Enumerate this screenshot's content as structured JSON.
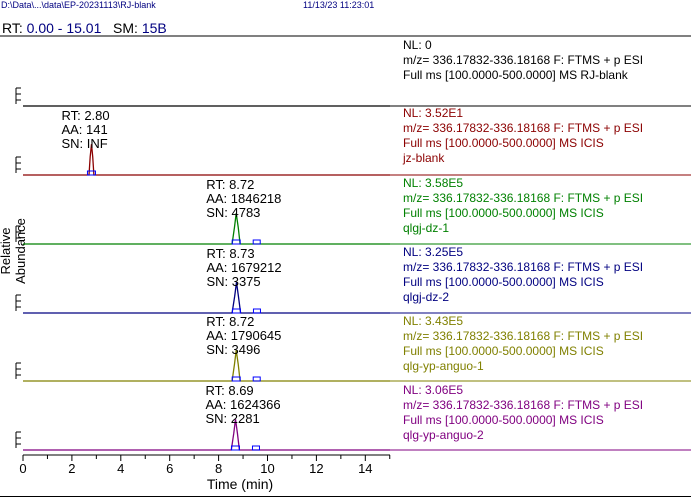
{
  "header": {
    "file_path": "D:\\Data\\...\\data\\EP-20231113\\RJ-blank",
    "timestamp": "11/13/23 11:23:01"
  },
  "rt_range": {
    "label": "RT:",
    "value": "0.00 - 15.01",
    "sm_label": "SM:",
    "sm_value": "15B"
  },
  "axis": {
    "ylabel": "Relative Abundance",
    "xlabel": "Time (min)"
  },
  "colors": {
    "black": "#000000",
    "red": "#8b0000",
    "green": "#008000",
    "blue": "#000080",
    "olive": "#808000",
    "purple": "#800080",
    "peakbox": "#0000ff"
  },
  "traces": [
    {
      "color": "black",
      "nl": "NL: 0",
      "filter": "m/z= 336.17832-336.18168 F: FTMS + p ESI",
      "scan": "Full ms [100.0000-500.0000]  MS RJ-blank",
      "name": ""
    },
    {
      "color": "red",
      "nl": "NL: 3.52E1",
      "filter": "m/z= 336.17832-336.18168 F: FTMS + p ESI",
      "scan": "Full ms [100.0000-500.0000]  MS  ICIS",
      "name": "jz-blank",
      "peak": {
        "rt_label": "RT: 2.80",
        "aa_label": "AA: 141",
        "sn_label": "SN: INF"
      }
    },
    {
      "color": "green",
      "nl": "NL: 3.58E5",
      "filter": "m/z= 336.17832-336.18168 F: FTMS + p ESI",
      "scan": "Full ms [100.0000-500.0000]  MS  ICIS",
      "name": "qlgj-dz-1",
      "peak": {
        "rt_label": "RT: 8.72",
        "aa_label": "AA: 1846218",
        "sn_label": "SN: 4783"
      }
    },
    {
      "color": "blue",
      "nl": "NL: 3.25E5",
      "filter": "m/z= 336.17832-336.18168 F: FTMS + p ESI",
      "scan": "Full ms [100.0000-500.0000]  MS  ICIS",
      "name": "qlgj-dz-2",
      "peak": {
        "rt_label": "RT: 8.73",
        "aa_label": "AA: 1679212",
        "sn_label": "SN: 3375"
      }
    },
    {
      "color": "olive",
      "nl": "NL: 3.43E5",
      "filter": "m/z= 336.17832-336.18168 F: FTMS + p ESI",
      "scan": "Full ms [100.0000-500.0000]  MS  ICIS",
      "name": "qlg-yp-anguo-1",
      "peak": {
        "rt_label": "RT: 8.72",
        "aa_label": "AA: 1790645",
        "sn_label": "SN: 3496"
      }
    },
    {
      "color": "purple",
      "nl": "NL: 3.06E5",
      "filter": "m/z= 336.17832-336.18168 F: FTMS + p ESI",
      "scan": "Full ms [100.0000-500.0000]  MS  ICIS",
      "name": "qlg-yp-anguo-2",
      "peak": {
        "rt_label": "RT: 8.69",
        "aa_label": "AA: 1624366",
        "sn_label": "SN: 2281"
      }
    }
  ],
  "chart_data": {
    "type": "line",
    "title": "",
    "xlabel": "Time (min)",
    "ylabel": "Relative Abundance",
    "xlim": [
      0,
      15.01
    ],
    "x_ticks": [
      0,
      2,
      4,
      6,
      8,
      10,
      12,
      14
    ],
    "series": [
      {
        "name": "RJ-blank",
        "peak_rt": null,
        "points": [
          [
            0,
            0
          ],
          [
            15.01,
            0
          ]
        ]
      },
      {
        "name": "jz-blank",
        "peak_rt": 2.8,
        "points": [
          [
            0,
            0
          ],
          [
            2.7,
            0
          ],
          [
            2.75,
            60
          ],
          [
            2.8,
            100
          ],
          [
            2.85,
            60
          ],
          [
            2.9,
            0
          ],
          [
            15.01,
            0
          ]
        ]
      },
      {
        "name": "qlgj-dz-1",
        "peak_rt": 8.72,
        "points": [
          [
            0,
            0
          ],
          [
            8.55,
            0
          ],
          [
            8.65,
            55
          ],
          [
            8.72,
            100
          ],
          [
            8.8,
            55
          ],
          [
            8.88,
            0
          ],
          [
            15.01,
            0
          ]
        ]
      },
      {
        "name": "qlgj-dz-2",
        "peak_rt": 8.73,
        "points": [
          [
            0,
            0
          ],
          [
            8.55,
            0
          ],
          [
            8.66,
            55
          ],
          [
            8.73,
            100
          ],
          [
            8.81,
            55
          ],
          [
            8.9,
            0
          ],
          [
            15.01,
            0
          ]
        ]
      },
      {
        "name": "qlg-yp-anguo-1",
        "peak_rt": 8.72,
        "points": [
          [
            0,
            0
          ],
          [
            8.55,
            0
          ],
          [
            8.65,
            55
          ],
          [
            8.72,
            100
          ],
          [
            8.8,
            55
          ],
          [
            8.88,
            0
          ],
          [
            15.01,
            0
          ]
        ]
      },
      {
        "name": "qlg-yp-anguo-2",
        "peak_rt": 8.69,
        "points": [
          [
            0,
            0
          ],
          [
            8.52,
            0
          ],
          [
            8.62,
            55
          ],
          [
            8.69,
            100
          ],
          [
            8.77,
            55
          ],
          [
            8.85,
            0
          ],
          [
            15.01,
            0
          ]
        ]
      }
    ]
  }
}
